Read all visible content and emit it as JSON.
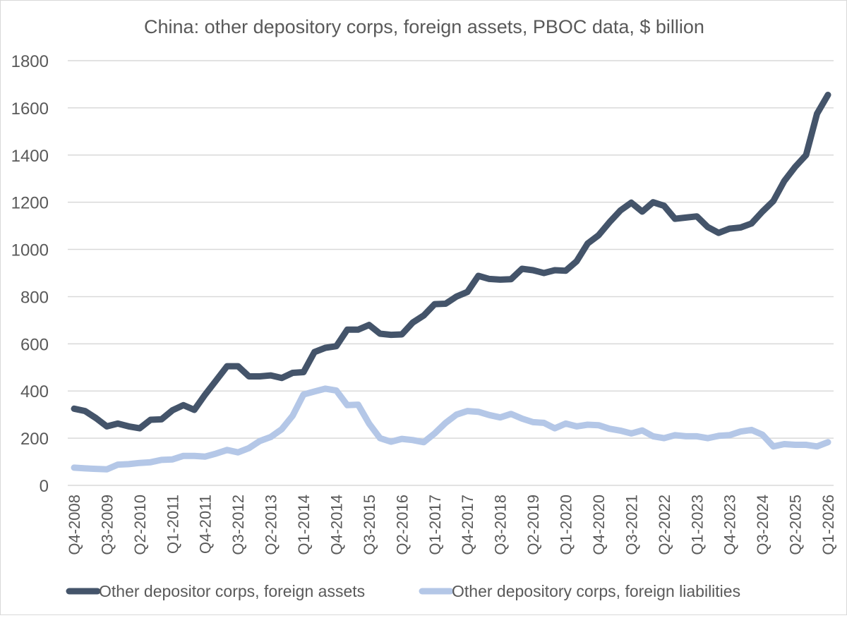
{
  "chart_data": {
    "type": "line",
    "title": "China: other depository corps, foreign assets, PBOC data, $ billion",
    "xlabel": "",
    "ylabel": "",
    "ylim": [
      0,
      1800
    ],
    "yticks": [
      0,
      200,
      400,
      600,
      800,
      1000,
      1200,
      1400,
      1600,
      1800
    ],
    "grid": true,
    "legend_position": "bottom",
    "x_start": "Q4-2008",
    "x_end": "Q1-2026",
    "x_tick_labels": [
      "Q4-2008",
      "Q3-2009",
      "Q2-2010",
      "Q1-2011",
      "Q4-2011",
      "Q3-2012",
      "Q2-2013",
      "Q1-2014",
      "Q4-2014",
      "Q3-2015",
      "Q2-2016",
      "Q1-2017",
      "Q4-2017",
      "Q3-2018",
      "Q2-2019",
      "Q1-2020",
      "Q4-2020",
      "Q3-2021",
      "Q2-2022",
      "Q1-2023",
      "Q4-2023",
      "Q3-2024",
      "Q2-2025",
      "Q1-2026"
    ],
    "series": [
      {
        "name": "Other depositor corps, foreign assets",
        "color": "#44546a",
        "values": [
          325,
          315,
          285,
          250,
          262,
          250,
          242,
          278,
          280,
          318,
          340,
          320,
          385,
          445,
          505,
          505,
          462,
          462,
          466,
          455,
          477,
          480,
          565,
          583,
          590,
          660,
          660,
          680,
          643,
          638,
          640,
          690,
          720,
          768,
          770,
          800,
          820,
          888,
          875,
          872,
          874,
          918,
          912,
          900,
          912,
          910,
          950,
          1025,
          1060,
          1115,
          1165,
          1198,
          1160,
          1200,
          1185,
          1130,
          1135,
          1140,
          1095,
          1070,
          1088,
          1093,
          1110,
          1160,
          1205,
          1290,
          1350,
          1400,
          1575,
          1655
        ]
      },
      {
        "name": "Other depository corps, foreign liabilities",
        "color": "#b4c7e7",
        "values": [
          75,
          72,
          70,
          68,
          88,
          90,
          95,
          98,
          108,
          110,
          125,
          125,
          122,
          135,
          150,
          140,
          158,
          188,
          205,
          238,
          295,
          385,
          398,
          410,
          402,
          340,
          342,
          262,
          200,
          185,
          197,
          192,
          183,
          220,
          265,
          300,
          315,
          312,
          298,
          288,
          303,
          283,
          268,
          265,
          242,
          262,
          250,
          257,
          255,
          240,
          232,
          220,
          233,
          208,
          200,
          213,
          208,
          208,
          200,
          210,
          213,
          228,
          235,
          215,
          165,
          175,
          172,
          172,
          165,
          183
        ]
      }
    ]
  }
}
